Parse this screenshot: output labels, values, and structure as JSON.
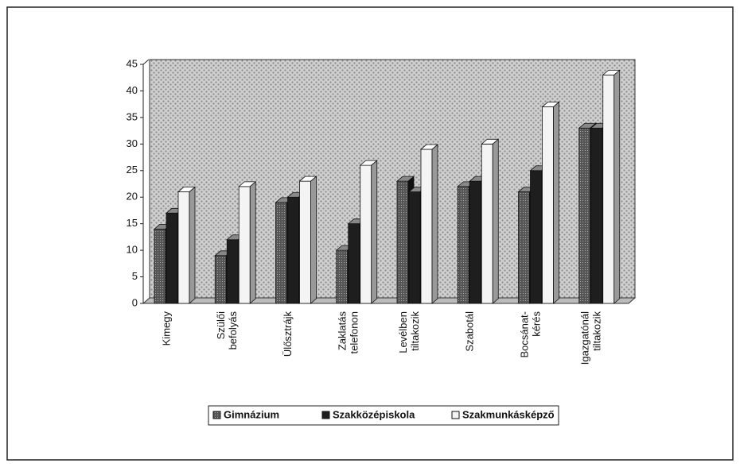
{
  "chart_data": {
    "type": "bar3d",
    "categories": [
      [
        "Kimegy"
      ],
      [
        "Szülői",
        "befolyás"
      ],
      [
        "Ülősztrájk"
      ],
      [
        "Zaklatás",
        "telefonon"
      ],
      [
        "Levélben",
        "tiltakozik"
      ],
      [
        "Szabotál"
      ],
      [
        "Bocsánat-",
        "kérés"
      ],
      [
        "Igazgatónál",
        "tiltakozik"
      ]
    ],
    "series": [
      {
        "name": "Gimnázium",
        "color": "#5a5a5a",
        "values": [
          14,
          9,
          19,
          10,
          23,
          22,
          21,
          33
        ]
      },
      {
        "name": "Szakközépiskola",
        "color": "#1e1e1e",
        "values": [
          17,
          12,
          20,
          15,
          21,
          23,
          25,
          33
        ]
      },
      {
        "name": "Szakmunkásképző",
        "color": "#f4f4f4",
        "values": [
          21,
          22,
          23,
          26,
          29,
          30,
          37,
          43
        ]
      }
    ],
    "ylim": [
      0,
      45
    ],
    "yticks": [
      0,
      5,
      10,
      15,
      20,
      25,
      30,
      35,
      40,
      45
    ],
    "legend": "bottom"
  }
}
